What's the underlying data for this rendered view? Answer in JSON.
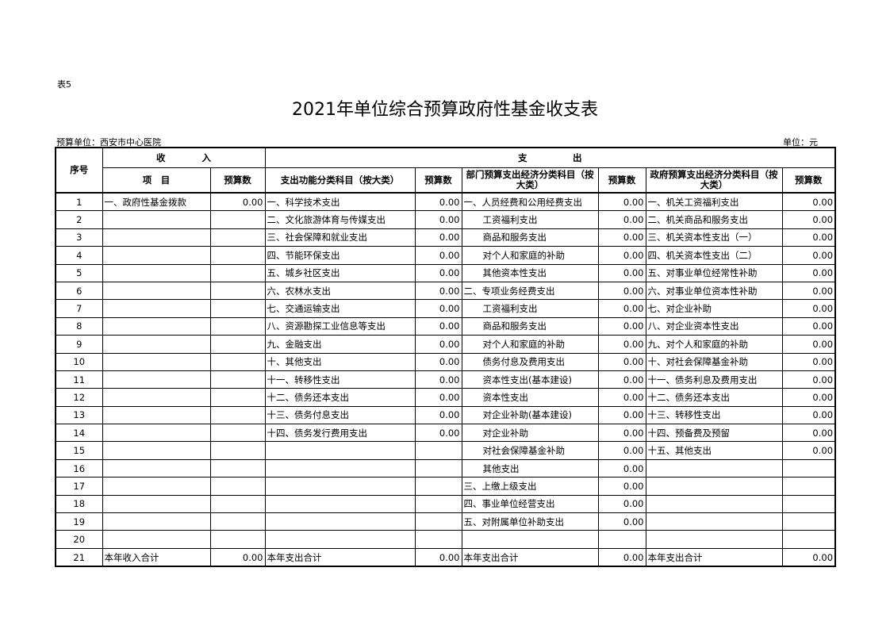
{
  "table_no": "表5",
  "title": "2021年单位综合预算政府性基金收支表",
  "unit_left": "预算单位：西安市中心医院",
  "unit_right": "单位：元",
  "header": {
    "seq": "序号",
    "income": "收　　　　入",
    "expense": "支　　　　　出",
    "columns": [
      "项　目",
      "预算数",
      "支出功能分类科目（按大类）",
      "预算数",
      "部门预算支出经济分类科目（按大类）",
      "预算数",
      "政府预算支出经济分类科目（按大类）",
      "预算数"
    ]
  },
  "table": {
    "rows": [
      [
        "1",
        "一、政府性基金拨款",
        "0.00",
        "一、科学技术支出",
        "0.00",
        "一、人员经费和公用经费支出",
        "0.00",
        "一、机关工资福利支出",
        "0.00"
      ],
      [
        "2",
        null,
        null,
        "二、文化旅游体育与传媒支出",
        "0.00",
        "工资福利支出",
        "0.00",
        "二、机关商品和服务支出",
        "0.00"
      ],
      [
        "3",
        null,
        null,
        "三、社会保障和就业支出",
        "0.00",
        "商品和服务支出",
        "0.00",
        "三、机关资本性支出（一）",
        "0.00"
      ],
      [
        "4",
        null,
        null,
        "四、节能环保支出",
        "0.00",
        "对个人和家庭的补助",
        "0.00",
        "四、机关资本性支出（二）",
        "0.00"
      ],
      [
        "5",
        null,
        null,
        "五、城乡社区支出",
        "0.00",
        "其他资本性支出",
        "0.00",
        "五、对事业单位经常性补助",
        "0.00"
      ],
      [
        "6",
        null,
        null,
        "六、农林水支出",
        "0.00",
        "二、专项业务经费支出",
        "0.00",
        "六、对事业单位资本性补助",
        "0.00"
      ],
      [
        "7",
        null,
        null,
        "七、交通运输支出",
        "0.00",
        "工资福利支出",
        "0.00",
        "七、对企业补助",
        "0.00"
      ],
      [
        "8",
        null,
        null,
        "八、资源勘探工业信息等支出",
        "0.00",
        "商品和服务支出",
        "0.00",
        "八、对企业资本性支出",
        "0.00"
      ],
      [
        "9",
        null,
        null,
        "九、金融支出",
        "0.00",
        "对个人和家庭的补助",
        "0.00",
        "九、对个人和家庭的补助",
        "0.00"
      ],
      [
        "10",
        null,
        null,
        "十、其他支出",
        "0.00",
        "债务付息及费用支出",
        "0.00",
        "十、对社会保障基金补助",
        "0.00"
      ],
      [
        "11",
        null,
        null,
        "十一、转移性支出",
        "0.00",
        "资本性支出(基本建设)",
        "0.00",
        "十一、债务利息及费用支出",
        "0.00"
      ],
      [
        "12",
        null,
        null,
        "十二、债务还本支出",
        "0.00",
        "资本性支出",
        "0.00",
        "十二、债务还本支出",
        "0.00"
      ],
      [
        "13",
        null,
        null,
        "十三、债务付息支出",
        "0.00",
        "对企业补助(基本建设)",
        "0.00",
        "十三、转移性支出",
        "0.00"
      ],
      [
        "14",
        null,
        null,
        "十四、债务发行费用支出",
        "0.00",
        "对企业补助",
        "0.00",
        "十四、预备费及预留",
        "0.00"
      ],
      [
        "15",
        null,
        null,
        null,
        null,
        "对社会保障基金补助",
        "0.00",
        "十五、其他支出",
        "0.00"
      ],
      [
        "16",
        null,
        null,
        null,
        null,
        "其他支出",
        "0.00",
        null,
        null
      ],
      [
        "17",
        null,
        null,
        null,
        null,
        "三、上缴上级支出",
        "0.00",
        null,
        null
      ],
      [
        "18",
        null,
        null,
        null,
        null,
        "四、事业单位经营支出",
        "0.00",
        null,
        null
      ],
      [
        "19",
        null,
        null,
        null,
        null,
        "五、对附属单位补助支出",
        "0.00",
        null,
        null
      ],
      [
        "20",
        null,
        null,
        null,
        null,
        null,
        null,
        null,
        null
      ],
      [
        "21",
        "本年收入合计",
        "0.00",
        "本年支出合计",
        "0.00",
        "本年支出合计",
        "0.00",
        "本年支出合计",
        "0.00"
      ]
    ]
  }
}
